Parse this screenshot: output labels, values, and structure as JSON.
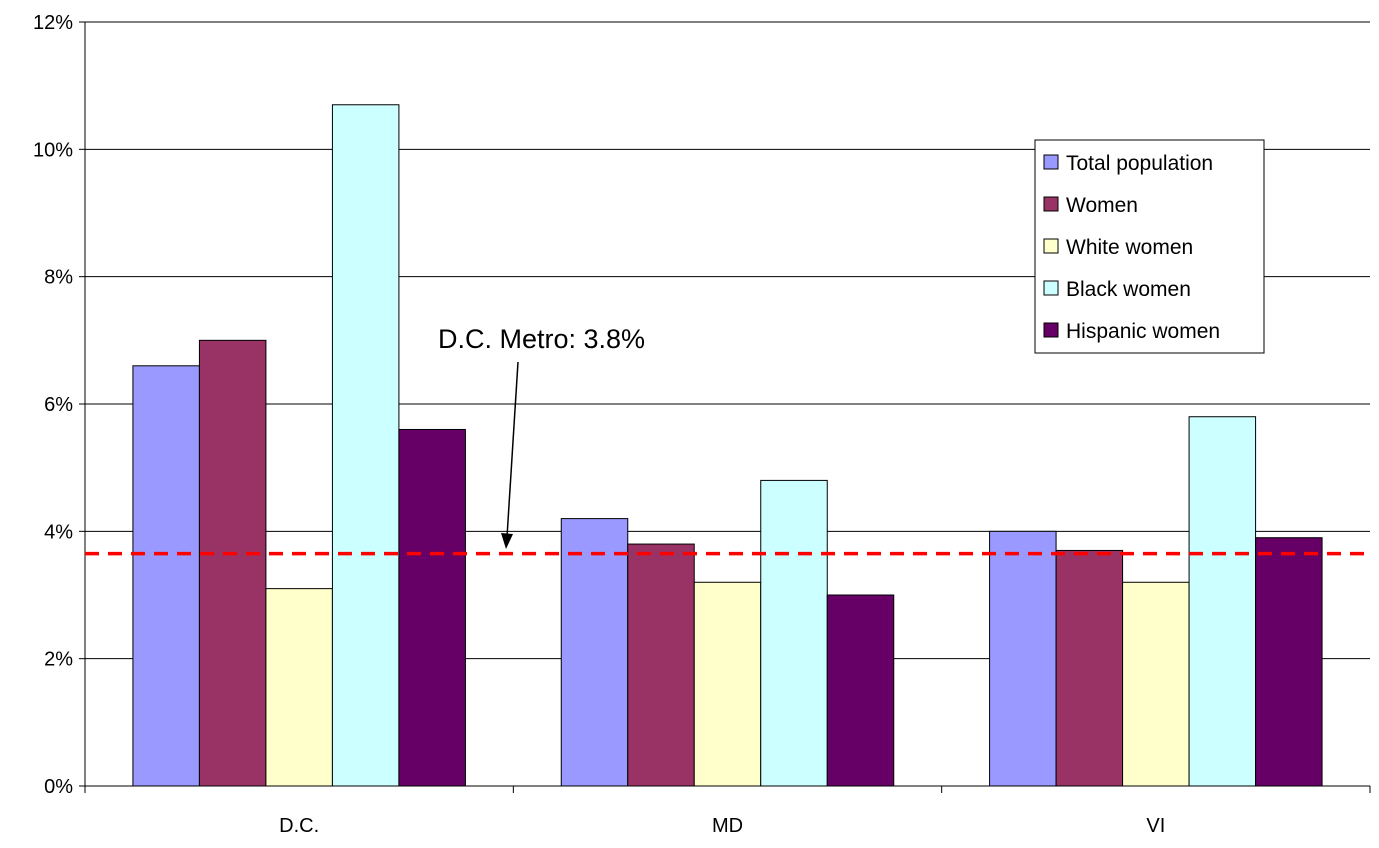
{
  "chart_data": {
    "type": "bar",
    "categories": [
      "D.C.",
      "MD",
      "VI"
    ],
    "series": [
      {
        "name": "Total population",
        "values": [
          6.6,
          4.2,
          4.0
        ],
        "color": "#9999FF"
      },
      {
        "name": "Women",
        "values": [
          7.0,
          3.8,
          3.7
        ],
        "color": "#993366"
      },
      {
        "name": "White women",
        "values": [
          3.1,
          3.2,
          3.2
        ],
        "color": "#FFFFCC"
      },
      {
        "name": "Black women",
        "values": [
          10.7,
          4.8,
          5.8
        ],
        "color": "#CCFFFF"
      },
      {
        "name": "Hispanic women",
        "values": [
          5.6,
          3.0,
          3.9
        ],
        "color": "#660066"
      }
    ],
    "ylim": [
      0,
      12
    ],
    "yticks": [
      "0%",
      "2%",
      "4%",
      "6%",
      "8%",
      "10%",
      "12%"
    ],
    "reference_line": {
      "value": 3.65,
      "color": "#FF0000",
      "style": "dashed"
    },
    "annotation": {
      "text": "D.C. Metro: 3.8%"
    },
    "grid": true,
    "legend_position": "right"
  }
}
